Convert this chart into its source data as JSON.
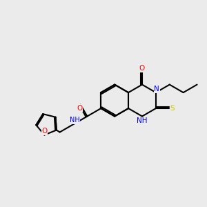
{
  "background_color": "#ebebeb",
  "atom_colors": {
    "N": "#0000ff",
    "O": "#ff0000",
    "S": "#cccc00",
    "H": "#7f7f7f"
  },
  "figsize": [
    3.0,
    3.0
  ],
  "dpi": 100
}
